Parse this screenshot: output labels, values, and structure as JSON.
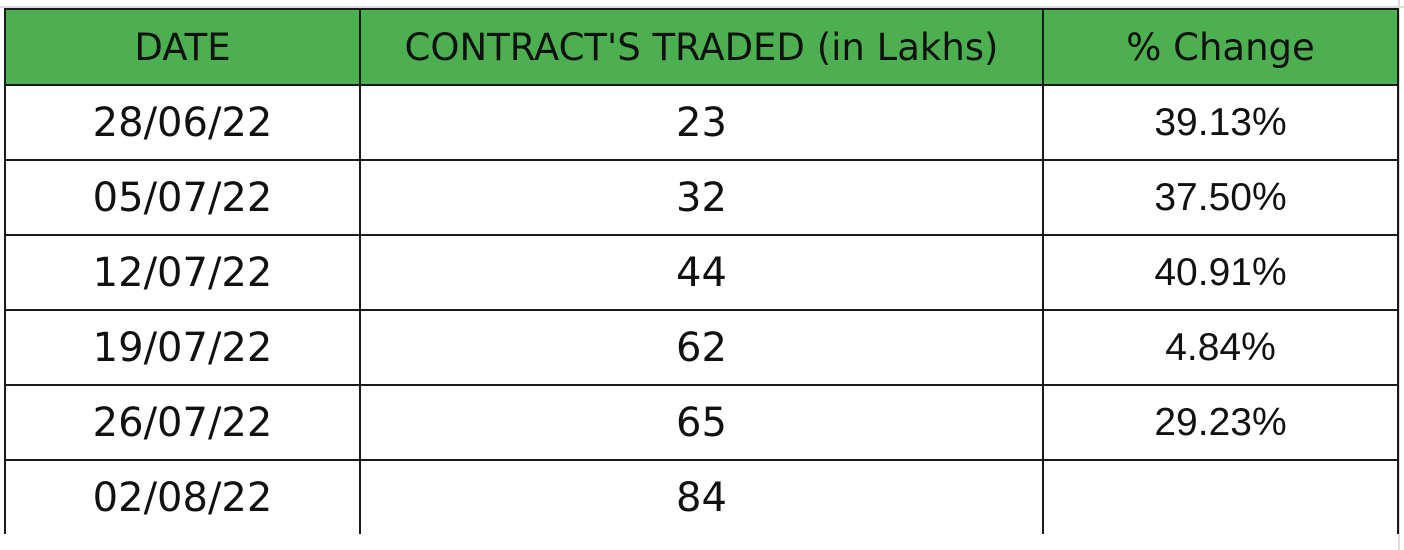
{
  "table": {
    "headers": {
      "date": "DATE",
      "contracts": "CONTRACT'S TRADED (in Lakhs)",
      "change": "% Change"
    },
    "header_color": "#4caf50",
    "rows": [
      {
        "date": "28/06/22",
        "contracts": "23",
        "change": "39.13%"
      },
      {
        "date": "05/07/22",
        "contracts": "32",
        "change": "37.50%"
      },
      {
        "date": "12/07/22",
        "contracts": "44",
        "change": "40.91%"
      },
      {
        "date": "19/07/22",
        "contracts": "62",
        "change": "4.84%"
      },
      {
        "date": "26/07/22",
        "contracts": "65",
        "change": "29.23%"
      },
      {
        "date": "02/08/22",
        "contracts": "84",
        "change": ""
      }
    ]
  }
}
